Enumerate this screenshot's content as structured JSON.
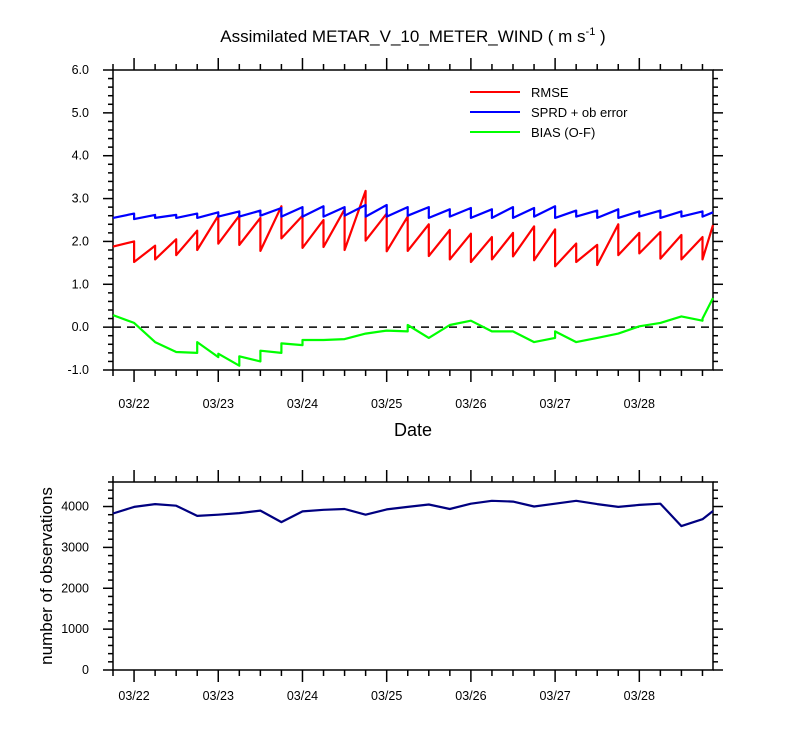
{
  "chart_data": [
    {
      "type": "line",
      "title": "Assimilated METAR_V_10_METER_WIND ( m s",
      "title_superscript": "-1",
      "title_suffix": " )",
      "xlabel": "Date",
      "ylabel": "",
      "ylim": [
        -1.0,
        6.0
      ],
      "yticks": [
        "-1.0",
        "0.0",
        "1.0",
        "2.0",
        "3.0",
        "4.0",
        "5.0",
        "6.0"
      ],
      "xticks": [
        "03/22",
        "03/23",
        "03/24",
        "03/25",
        "03/26",
        "03/27",
        "03/28"
      ],
      "xlim": [
        "03/21 18:00",
        "03/28 21:00"
      ],
      "zero_line": "dashed",
      "legend_position": "top-right",
      "series": [
        {
          "name": "RMSE",
          "color": "#ff0000",
          "x": [
            "03/21 18:00",
            "03/22 00:00",
            "03/22 00:00",
            "03/22 06:00",
            "03/22 06:00",
            "03/22 12:00",
            "03/22 12:00",
            "03/22 18:00",
            "03/22 18:00",
            "03/23 00:00",
            "03/23 00:00",
            "03/23 06:00",
            "03/23 06:00",
            "03/23 12:00",
            "03/23 12:00",
            "03/23 18:00",
            "03/23 18:00",
            "03/24 00:00",
            "03/24 00:00",
            "03/24 06:00",
            "03/24 06:00",
            "03/24 12:00",
            "03/24 12:00",
            "03/24 18:00",
            "03/24 18:00",
            "03/25 00:00",
            "03/25 00:00",
            "03/25 06:00",
            "03/25 06:00",
            "03/25 12:00",
            "03/25 12:00",
            "03/25 18:00",
            "03/25 18:00",
            "03/26 00:00",
            "03/26 00:00",
            "03/26 06:00",
            "03/26 06:00",
            "03/26 12:00",
            "03/26 12:00",
            "03/26 18:00",
            "03/26 18:00",
            "03/27 00:00",
            "03/27 00:00",
            "03/27 06:00",
            "03/27 06:00",
            "03/27 12:00",
            "03/27 12:00",
            "03/27 18:00",
            "03/27 18:00",
            "03/28 00:00",
            "03/28 00:00",
            "03/28 06:00",
            "03/28 06:00",
            "03/28 12:00",
            "03/28 12:00",
            "03/28 18:00",
            "03/28 18:00",
            "03/28 21:00"
          ],
          "values": [
            1.88,
            2.0,
            1.52,
            1.9,
            1.58,
            2.05,
            1.68,
            2.25,
            1.8,
            2.6,
            1.95,
            2.6,
            1.92,
            2.55,
            1.78,
            2.82,
            2.07,
            2.6,
            1.85,
            2.5,
            1.87,
            2.75,
            1.8,
            3.18,
            2.02,
            2.65,
            1.77,
            2.58,
            1.78,
            2.4,
            1.66,
            2.27,
            1.58,
            2.18,
            1.52,
            2.1,
            1.58,
            2.2,
            1.65,
            2.35,
            1.56,
            2.28,
            1.42,
            1.95,
            1.52,
            1.92,
            1.45,
            2.4,
            1.68,
            2.2,
            1.72,
            2.22,
            1.6,
            2.15,
            1.58,
            2.1,
            1.58,
            2.38
          ]
        },
        {
          "name": "SPRD + ob error",
          "color": "#0000ff",
          "x": [
            "03/21 18:00",
            "03/22 00:00",
            "03/22 00:00",
            "03/22 06:00",
            "03/22 06:00",
            "03/22 12:00",
            "03/22 12:00",
            "03/22 18:00",
            "03/22 18:00",
            "03/23 00:00",
            "03/23 00:00",
            "03/23 06:00",
            "03/23 06:00",
            "03/23 12:00",
            "03/23 12:00",
            "03/23 18:00",
            "03/23 18:00",
            "03/24 00:00",
            "03/24 00:00",
            "03/24 06:00",
            "03/24 06:00",
            "03/24 12:00",
            "03/24 12:00",
            "03/24 18:00",
            "03/24 18:00",
            "03/25 00:00",
            "03/25 00:00",
            "03/25 06:00",
            "03/25 06:00",
            "03/25 12:00",
            "03/25 12:00",
            "03/25 18:00",
            "03/25 18:00",
            "03/26 00:00",
            "03/26 00:00",
            "03/26 06:00",
            "03/26 06:00",
            "03/26 12:00",
            "03/26 12:00",
            "03/26 18:00",
            "03/26 18:00",
            "03/27 00:00",
            "03/27 00:00",
            "03/27 06:00",
            "03/27 06:00",
            "03/27 12:00",
            "03/27 12:00",
            "03/27 18:00",
            "03/27 18:00",
            "03/28 00:00",
            "03/28 00:00",
            "03/28 06:00",
            "03/28 06:00",
            "03/28 12:00",
            "03/28 12:00",
            "03/28 18:00",
            "03/28 18:00",
            "03/28 21:00"
          ],
          "values": [
            2.55,
            2.65,
            2.52,
            2.62,
            2.55,
            2.62,
            2.55,
            2.65,
            2.55,
            2.68,
            2.58,
            2.7,
            2.58,
            2.72,
            2.6,
            2.78,
            2.58,
            2.8,
            2.58,
            2.82,
            2.58,
            2.8,
            2.6,
            2.85,
            2.58,
            2.85,
            2.58,
            2.8,
            2.6,
            2.8,
            2.55,
            2.75,
            2.58,
            2.78,
            2.55,
            2.75,
            2.55,
            2.8,
            2.55,
            2.78,
            2.58,
            2.82,
            2.55,
            2.72,
            2.58,
            2.72,
            2.55,
            2.75,
            2.55,
            2.7,
            2.58,
            2.72,
            2.55,
            2.7,
            2.58,
            2.7,
            2.58,
            2.68
          ]
        },
        {
          "name": "BIAS (O-F)",
          "color": "#00ff00",
          "x": [
            "03/21 18:00",
            "03/22 00:00",
            "03/22 06:00",
            "03/22 12:00",
            "03/22 18:00",
            "03/22 18:00",
            "03/23 00:00",
            "03/23 00:00",
            "03/23 06:00",
            "03/23 06:00",
            "03/23 12:00",
            "03/23 12:00",
            "03/23 18:00",
            "03/23 18:00",
            "03/24 00:00",
            "03/24 00:00",
            "03/24 06:00",
            "03/24 12:00",
            "03/24 18:00",
            "03/25 00:00",
            "03/25 06:00",
            "03/25 06:00",
            "03/25 12:00",
            "03/25 18:00",
            "03/26 00:00",
            "03/26 06:00",
            "03/26 12:00",
            "03/26 18:00",
            "03/27 00:00",
            "03/27 00:00",
            "03/27 06:00",
            "03/27 12:00",
            "03/27 18:00",
            "03/28 00:00",
            "03/28 06:00",
            "03/28 12:00",
            "03/28 18:00",
            "03/28 18:00",
            "03/28 21:00"
          ],
          "values": [
            0.28,
            0.1,
            -0.35,
            -0.58,
            -0.6,
            -0.35,
            -0.7,
            -0.62,
            -0.9,
            -0.68,
            -0.8,
            -0.55,
            -0.6,
            -0.38,
            -0.42,
            -0.3,
            -0.3,
            -0.28,
            -0.15,
            -0.08,
            -0.1,
            0.05,
            -0.25,
            0.05,
            0.15,
            -0.1,
            -0.1,
            -0.35,
            -0.25,
            -0.1,
            -0.35,
            -0.25,
            -0.15,
            0.02,
            0.1,
            0.25,
            0.15,
            0.2,
            0.68
          ]
        }
      ]
    },
    {
      "type": "line",
      "title": "",
      "xlabel": "",
      "ylabel": "number of observations",
      "ylim": [
        0,
        4600
      ],
      "yticks": [
        "0",
        "1000",
        "2000",
        "3000",
        "4000"
      ],
      "xticks": [
        "03/22",
        "03/23",
        "03/24",
        "03/25",
        "03/26",
        "03/27",
        "03/28"
      ],
      "xlim": [
        "03/21 18:00",
        "03/28 21:00"
      ],
      "series": [
        {
          "color": "#000080",
          "x": [
            "03/21 18:00",
            "03/22 00:00",
            "03/22 06:00",
            "03/22 12:00",
            "03/22 18:00",
            "03/23 00:00",
            "03/23 06:00",
            "03/23 12:00",
            "03/23 18:00",
            "03/24 00:00",
            "03/24 06:00",
            "03/24 12:00",
            "03/24 18:00",
            "03/25 00:00",
            "03/25 06:00",
            "03/25 12:00",
            "03/25 18:00",
            "03/26 00:00",
            "03/26 06:00",
            "03/26 12:00",
            "03/26 18:00",
            "03/27 00:00",
            "03/27 06:00",
            "03/27 12:00",
            "03/27 18:00",
            "03/28 00:00",
            "03/28 06:00",
            "03/28 12:00",
            "03/28 18:00",
            "03/28 21:00"
          ],
          "values": [
            3830,
            3990,
            4060,
            4020,
            3770,
            3800,
            3840,
            3900,
            3620,
            3880,
            3920,
            3940,
            3800,
            3930,
            3990,
            4050,
            3940,
            4070,
            4140,
            4120,
            4000,
            4070,
            4140,
            4060,
            3990,
            4040,
            4070,
            3520,
            3690,
            3890
          ]
        }
      ]
    }
  ]
}
